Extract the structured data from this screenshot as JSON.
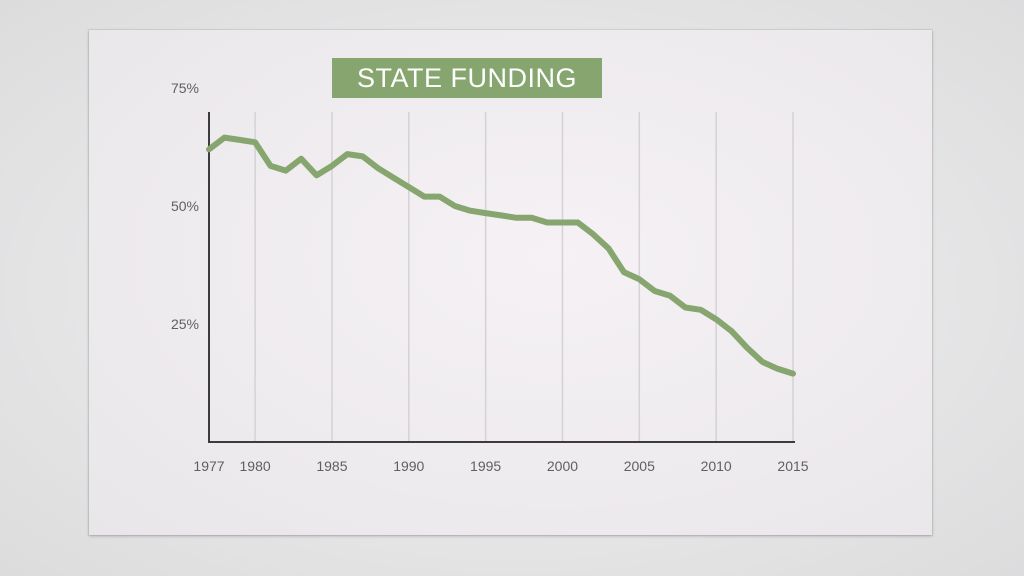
{
  "chart_data": {
    "type": "line",
    "title": "STATE FUNDING",
    "xlabel": "",
    "ylabel": "",
    "x_ticks": [
      1977,
      1980,
      1985,
      1990,
      1995,
      2000,
      2005,
      2010,
      2015
    ],
    "x_tick_labels": [
      "1977",
      "1980",
      "1985",
      "1990",
      "1995",
      "2000",
      "2005",
      "2010",
      "2015"
    ],
    "y_ticks": [
      25,
      50,
      75
    ],
    "y_tick_labels": [
      "25%",
      "50%",
      "75%"
    ],
    "xlim": [
      1977,
      2015
    ],
    "ylim": [
      0,
      75
    ],
    "grid": "vertical",
    "line_color": "#87a66f",
    "series": [
      {
        "x": [
          1977,
          1978,
          1979,
          1980,
          1981,
          1982,
          1983,
          1984,
          1985,
          1986,
          1987,
          1988,
          1989,
          1990,
          1991,
          1992,
          1993,
          1994,
          1995,
          1996,
          1997,
          1998,
          1999,
          2000,
          2001,
          2002,
          2003,
          2004,
          2005,
          2006,
          2007,
          2008,
          2009,
          2010,
          2011,
          2012,
          2013,
          2014,
          2015
        ],
        "values": [
          62,
          64.5,
          64,
          63.5,
          58.5,
          57.5,
          60,
          56.5,
          58.5,
          61,
          60.5,
          58,
          56,
          54,
          52,
          52,
          50,
          49,
          48.5,
          48,
          47.5,
          47.5,
          46.5,
          46.5,
          46.5,
          44,
          41,
          36,
          34.5,
          32,
          31,
          28.5,
          28,
          26,
          23.5,
          20,
          17,
          15.5,
          14.5
        ]
      }
    ]
  }
}
